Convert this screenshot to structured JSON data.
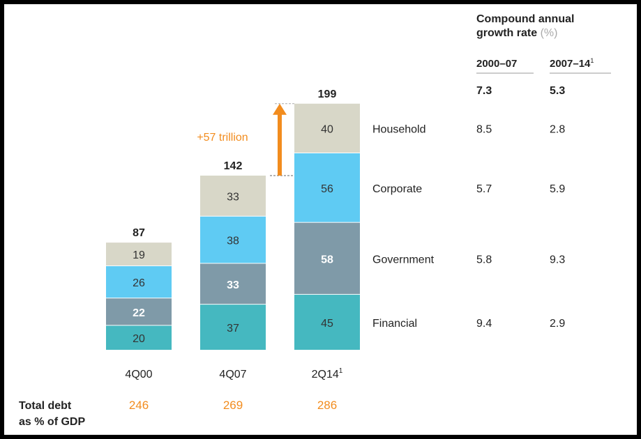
{
  "chart_data": {
    "type": "bar",
    "stacked": true,
    "categories": [
      "4Q00",
      "4Q07",
      "2Q14"
    ],
    "category_superscripts": [
      "",
      "",
      "1"
    ],
    "series": [
      {
        "name": "Financial",
        "values": [
          20,
          37,
          45
        ],
        "color": "#45B8C0",
        "label_color": "#333333",
        "label_bold": false
      },
      {
        "name": "Government",
        "values": [
          22,
          33,
          58
        ],
        "color": "#7F9AA8",
        "label_color": "#ffffff",
        "label_bold": true
      },
      {
        "name": "Corporate",
        "values": [
          26,
          38,
          56
        ],
        "color": "#5FCBF3",
        "label_color": "#333333",
        "label_bold": false
      },
      {
        "name": "Household",
        "values": [
          19,
          33,
          40
        ],
        "color": "#D8D7C8",
        "label_color": "#333333",
        "label_bold": false
      }
    ],
    "totals": [
      "87",
      "142",
      "199"
    ],
    "annotation": {
      "text": "+57 trillion",
      "color": "#F28C1E"
    },
    "footer": {
      "label_line1": "Total debt",
      "label_line2": "as % of GDP",
      "values": [
        "246",
        "269",
        "286"
      ],
      "color": "#F28C1E"
    },
    "growth_table": {
      "title_line1": "Compound annual",
      "title_line2": "growth rate",
      "title_unit": "(%)",
      "columns": [
        "2000–07",
        "2007–14"
      ],
      "column_superscripts": [
        "",
        "1"
      ],
      "totals": [
        "7.3",
        "5.3"
      ],
      "rows": [
        {
          "name": "Household",
          "values": [
            "8.5",
            "2.8"
          ]
        },
        {
          "name": "Corporate",
          "values": [
            "5.7",
            "5.9"
          ]
        },
        {
          "name": "Government",
          "values": [
            "5.8",
            "9.3"
          ]
        },
        {
          "name": "Financial",
          "values": [
            "9.4",
            "2.9"
          ]
        }
      ]
    }
  }
}
